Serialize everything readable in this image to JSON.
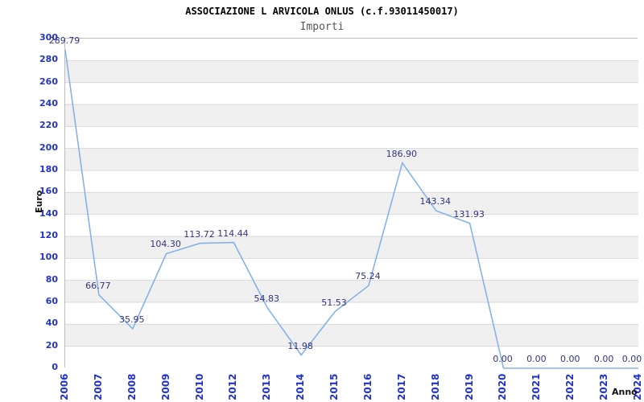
{
  "page": {
    "background": "#ffffff"
  },
  "chart_data": {
    "type": "line",
    "title": "ASSOCIAZIONE L ARVICOLA ONLUS (c.f.93011450017)",
    "subtitle": "Importi",
    "xlabel": "Anno",
    "ylabel": "Euro",
    "categories": [
      "2006",
      "2007",
      "2008",
      "2009",
      "2010",
      "2012",
      "2013",
      "2014",
      "2015",
      "2016",
      "2017",
      "2018",
      "2019",
      "2020",
      "2021",
      "2022",
      "2023",
      "2024"
    ],
    "values": [
      289.79,
      66.77,
      35.95,
      104.3,
      113.72,
      114.44,
      54.83,
      11.98,
      51.53,
      75.24,
      186.9,
      143.34,
      131.93,
      0.0,
      0.0,
      0.0,
      0.0,
      0.0
    ],
    "labels": [
      "289.79",
      "66.77",
      "35.95",
      "104.30",
      "113.72",
      "114.44",
      "54.83",
      "11.98",
      "51.53",
      "75.24",
      "186.90",
      "143.34",
      "131.93",
      "0.00",
      "0.00",
      "0.00",
      "0.00",
      "0.00"
    ],
    "ylim": [
      0,
      300
    ],
    "ytick_step": 20,
    "grid": true,
    "legend": "none",
    "line_color": "#85b3e8",
    "grid_color": "#d9d9d9",
    "band_colors": [
      "#ffffff",
      "#f0f0f0"
    ],
    "data_label_color": "#333380",
    "axis_tick_color": "#2233cc"
  }
}
